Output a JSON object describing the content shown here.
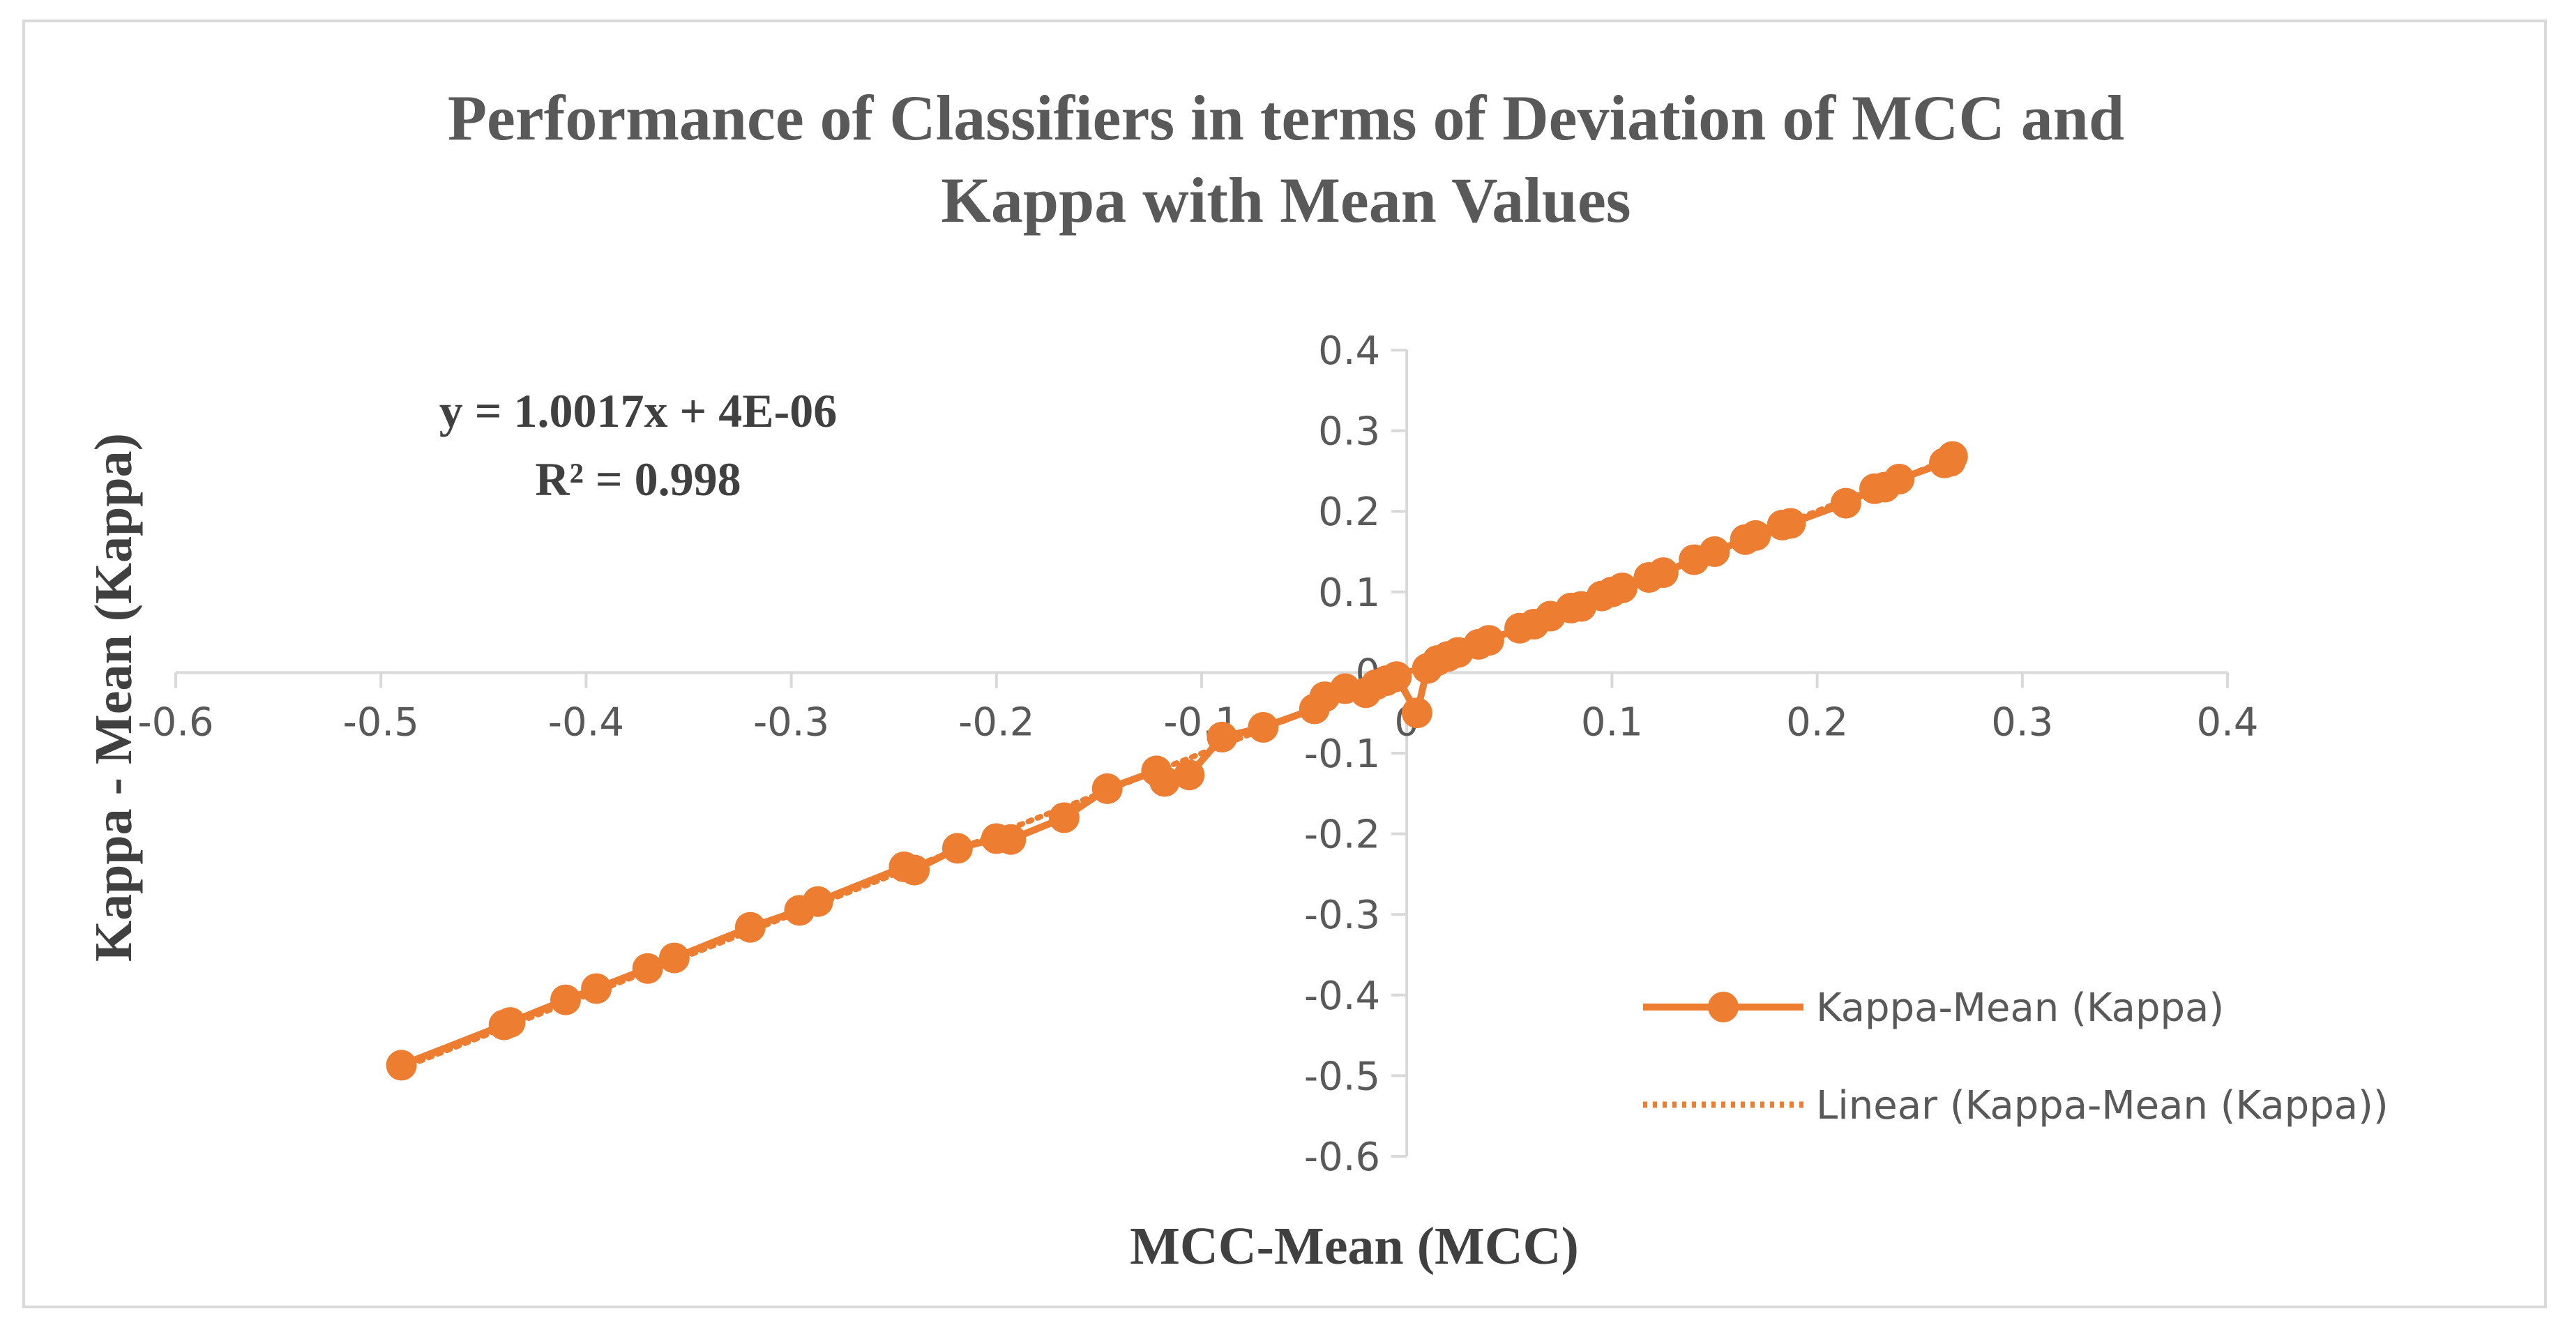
{
  "chart_data": {
    "type": "scatter",
    "title": [
      "Performance of Classifiers in terms of Deviation of MCC and",
      "Kappa with Mean Values"
    ],
    "xlabel": "MCC-Mean (MCC)",
    "ylabel": "Kappa - Mean (Kappa)",
    "xlim": [
      -0.6,
      0.4
    ],
    "ylim": [
      -0.6,
      0.4
    ],
    "xticks": [
      -0.6,
      -0.5,
      -0.4,
      -0.3,
      -0.2,
      -0.1,
      0,
      0.1,
      0.2,
      0.3,
      0.4
    ],
    "yticks": [
      -0.6,
      -0.5,
      -0.4,
      -0.3,
      -0.2,
      -0.1,
      0,
      0.1,
      0.2,
      0.3,
      0.4
    ],
    "xtick_labels": [
      "-0.6",
      "-0.5",
      "-0.4",
      "-0.3",
      "-0.2",
      "-0.1",
      "0",
      "0.1",
      "0.2",
      "0.3",
      "0.4"
    ],
    "ytick_labels": [
      "-0.6",
      "-0.5",
      "-0.4",
      "-0.3",
      "-0.2",
      "-0.1",
      "0",
      "0.1",
      "0.2",
      "0.3",
      "0.4"
    ],
    "grid": false,
    "legend_position": "bottom-right",
    "colors": {
      "series": "#ed7d31",
      "text": "#595959",
      "axis": "#d9d9d9"
    },
    "series": [
      {
        "name": "Kappa-Mean (Kappa)",
        "style": "line-markers",
        "x": [
          -0.49,
          -0.44,
          -0.437,
          -0.41,
          -0.395,
          -0.37,
          -0.357,
          -0.32,
          -0.296,
          -0.287,
          -0.245,
          -0.24,
          -0.219,
          -0.2,
          -0.193,
          -0.167,
          -0.146,
          -0.122,
          -0.118,
          -0.106,
          -0.09,
          -0.07,
          -0.045,
          -0.04,
          -0.03,
          -0.02,
          -0.015,
          -0.01,
          -0.005,
          0.005,
          0.01,
          0.015,
          0.02,
          0.025,
          0.035,
          0.04,
          0.055,
          0.062,
          0.07,
          0.08,
          0.085,
          0.095,
          0.1,
          0.105,
          0.118,
          0.125,
          0.14,
          0.15,
          0.165,
          0.17,
          0.183,
          0.187,
          0.214,
          0.228,
          0.233,
          0.24,
          0.262,
          0.265,
          0.266
        ],
        "y": [
          -0.487,
          -0.437,
          -0.434,
          -0.406,
          -0.392,
          -0.367,
          -0.354,
          -0.316,
          -0.295,
          -0.284,
          -0.241,
          -0.245,
          -0.218,
          -0.206,
          -0.207,
          -0.18,
          -0.144,
          -0.122,
          -0.135,
          -0.127,
          -0.08,
          -0.068,
          -0.045,
          -0.03,
          -0.02,
          -0.025,
          -0.015,
          -0.01,
          -0.005,
          -0.05,
          0.005,
          0.015,
          0.02,
          0.025,
          0.035,
          0.04,
          0.055,
          0.06,
          0.07,
          0.08,
          0.082,
          0.095,
          0.1,
          0.105,
          0.118,
          0.124,
          0.14,
          0.15,
          0.165,
          0.17,
          0.183,
          0.185,
          0.21,
          0.228,
          0.23,
          0.24,
          0.26,
          0.262,
          0.268
        ]
      },
      {
        "name": "Linear (Kappa-Mean (Kappa))",
        "style": "dotted-trendline",
        "slope": 1.0017,
        "intercept": 4e-06,
        "x_range": [
          -0.49,
          0.266
        ]
      }
    ],
    "annotations": [
      "y = 1.0017x + 4E-06",
      "R² = 0.998"
    ]
  }
}
